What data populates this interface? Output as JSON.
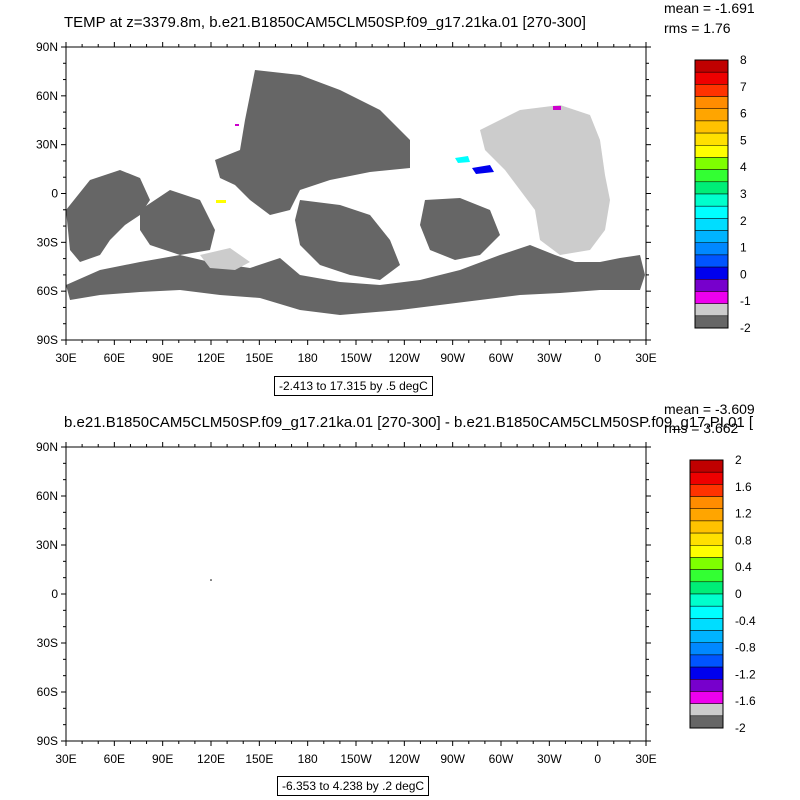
{
  "chart_data": [
    {
      "type": "heatmap",
      "title": "TEMP at z=3379.8m, b.e21.B1850CAM5CLM50SP.f09_g17.21ka.01 [270-300]",
      "stats": {
        "mean": "mean = -1.691",
        "rms": "rms = 1.76"
      },
      "range_label": "-2.413 to 17.315 by .5 degC",
      "x_ticks": [
        "30E",
        "60E",
        "90E",
        "120E",
        "150E",
        "180",
        "150W",
        "120W",
        "90W",
        "60W",
        "30W",
        "0",
        "30E"
      ],
      "y_ticks": [
        "90N",
        "60N",
        "30N",
        "0",
        "30S",
        "60S",
        "90S"
      ],
      "colorbar": {
        "labels": [
          "8",
          "7",
          "6",
          "5",
          "4",
          "3",
          "2",
          "1",
          "0",
          "-1",
          "-2"
        ],
        "colors": [
          "#c00000",
          "#ee0000",
          "#ff3300",
          "#ff8c00",
          "#ffa500",
          "#ffc200",
          "#ffe000",
          "#ffff00",
          "#7fff00",
          "#33ff33",
          "#00ee77",
          "#00ffcc",
          "#00ffff",
          "#00ddff",
          "#00b4ff",
          "#0088ff",
          "#0055ff",
          "#0000ee",
          "#7700cc",
          "#ee00ee",
          "#cccccc",
          "#666666"
        ]
      }
    },
    {
      "type": "heatmap",
      "title": "b.e21.B1850CAM5CLM50SP.f09_g17.21ka.01 [270-300] - b.e21.B1850CAM5CLM50SP.f09_g17.PI.01 [",
      "stats": {
        "mean": "mean = -3.609",
        "rms": "rms = 3.662"
      },
      "range_label": "-6.353 to 4.238 by .2 degC",
      "x_ticks": [
        "30E",
        "60E",
        "90E",
        "120E",
        "150E",
        "180",
        "150W",
        "120W",
        "90W",
        "60W",
        "30W",
        "0",
        "30E"
      ],
      "y_ticks": [
        "90N",
        "60N",
        "30N",
        "0",
        "30S",
        "60S",
        "90S"
      ],
      "colorbar": {
        "labels": [
          "2",
          "1.6",
          "1.2",
          "0.8",
          "0.4",
          "0",
          "-0.4",
          "-0.8",
          "-1.2",
          "-1.6",
          "-2"
        ],
        "colors": [
          "#c00000",
          "#ee0000",
          "#ff3300",
          "#ff8c00",
          "#ffa500",
          "#ffc200",
          "#ffe000",
          "#ffff00",
          "#7fff00",
          "#33ff33",
          "#00ee77",
          "#00ffcc",
          "#00ffff",
          "#00ddff",
          "#00b4ff",
          "#0088ff",
          "#0055ff",
          "#0000ee",
          "#7700cc",
          "#ee00ee",
          "#cccccc",
          "#666666"
        ]
      }
    }
  ]
}
